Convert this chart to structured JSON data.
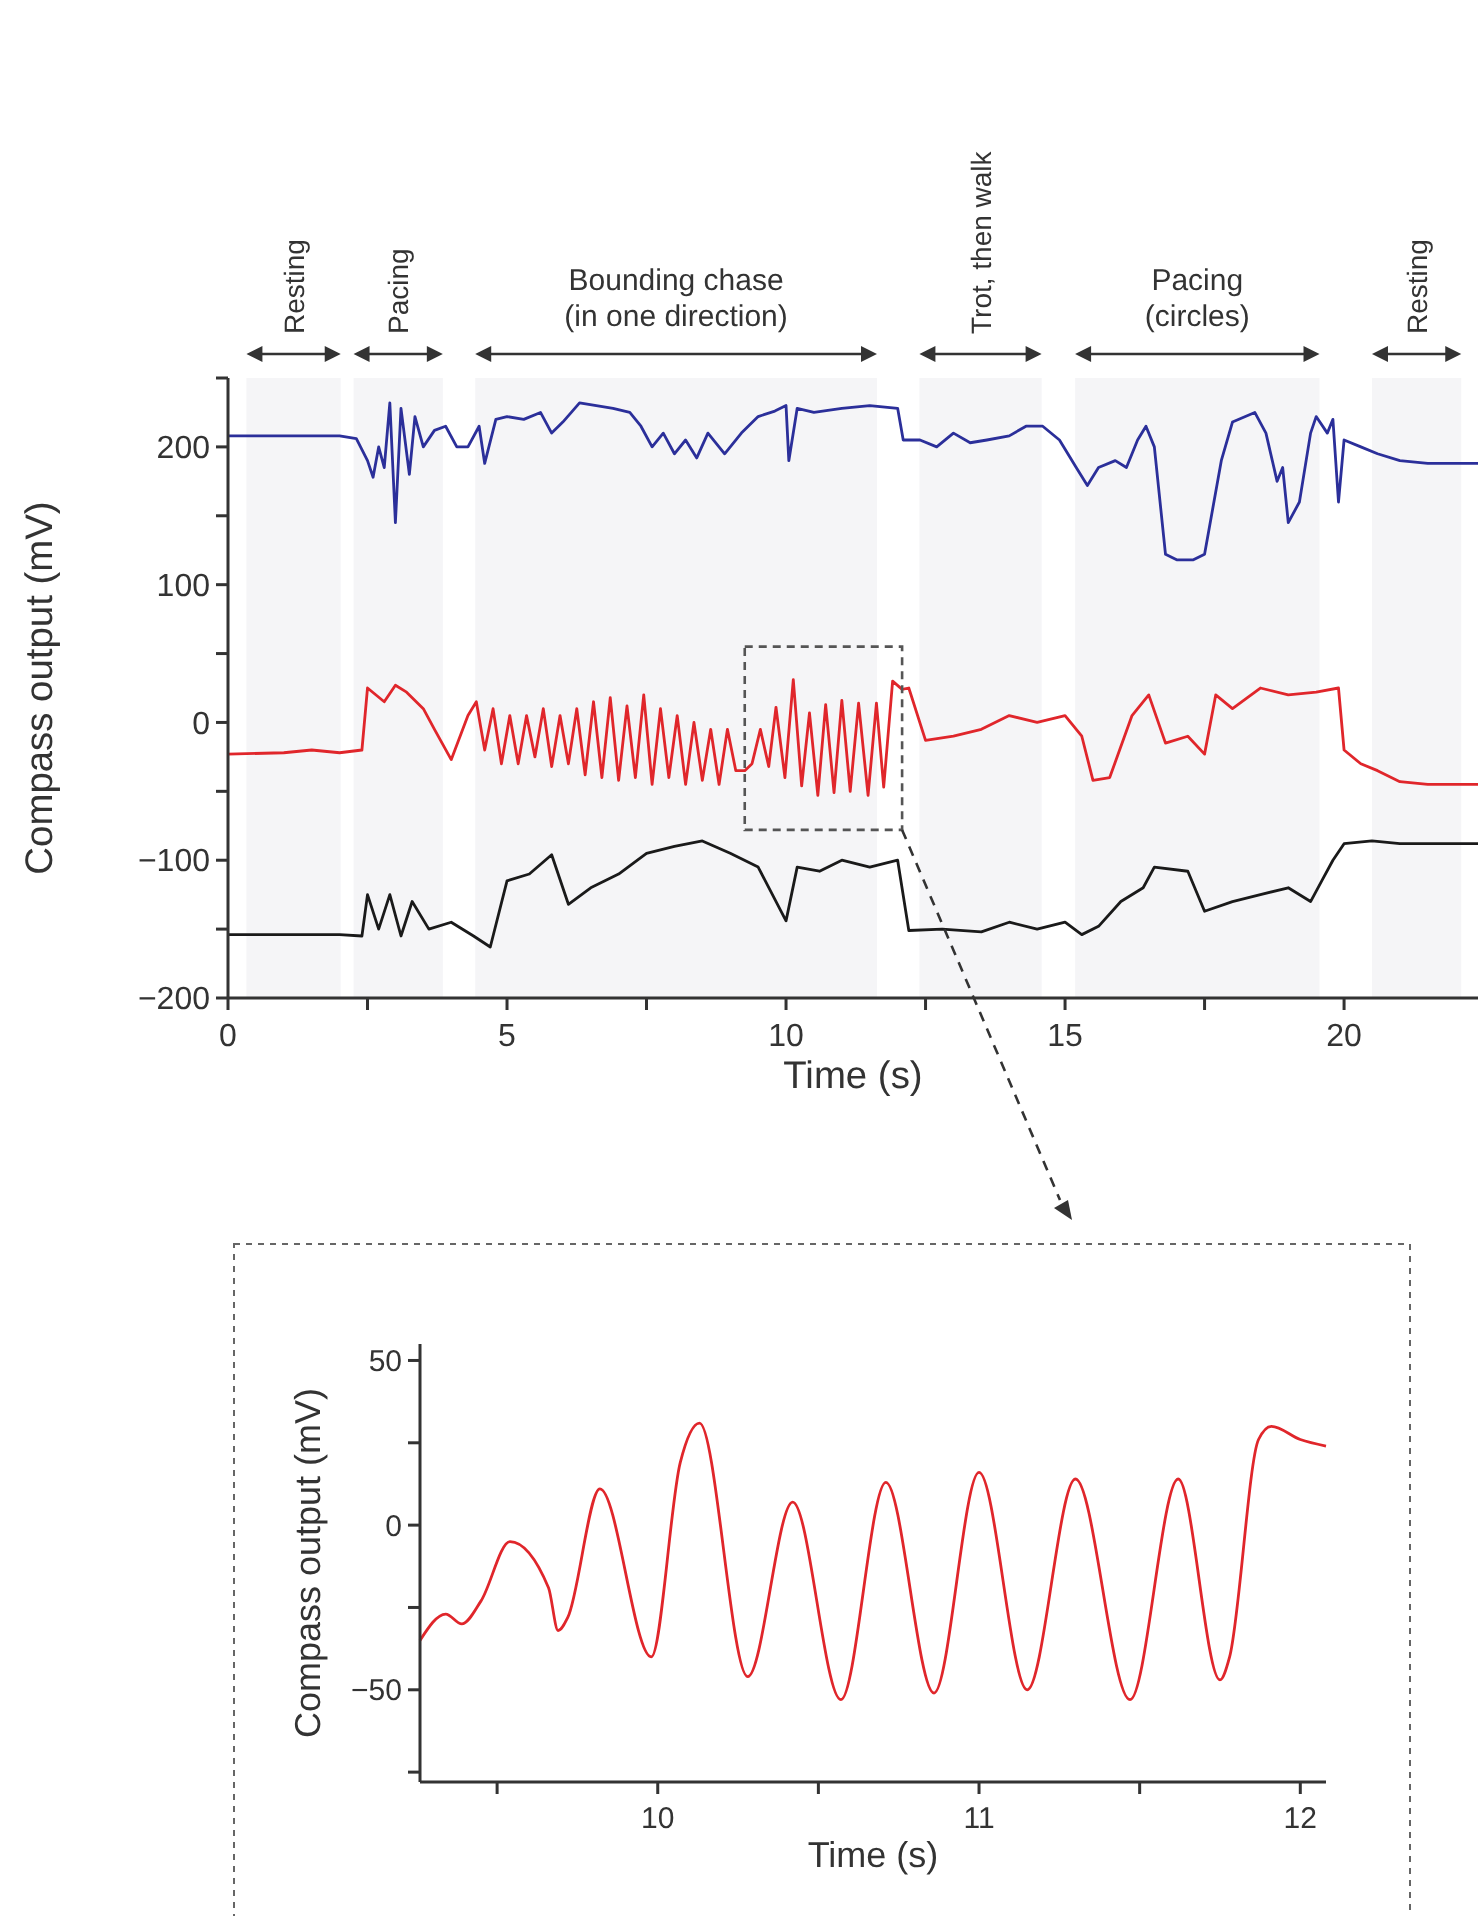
{
  "chart_data": [
    {
      "type": "line",
      "xlabel": "Time (s)",
      "ylabel": "Compass output (mV)",
      "xlim": [
        0,
        22.4
      ],
      "ylim": [
        -200,
        250
      ],
      "xticks": [
        0,
        {
          "value": 2.5,
          "label": null
        },
        5,
        {
          "value": 7.5,
          "label": null
        },
        10,
        {
          "value": 12.5,
          "label": null
        },
        15,
        {
          "value": 17.5,
          "label": null
        },
        20
      ],
      "yticks": [
        -200,
        {
          "value": -150,
          "label": null
        },
        -100,
        {
          "value": -50,
          "label": null
        },
        0,
        {
          "value": 50,
          "label": null
        },
        100,
        {
          "value": 150,
          "label": null
        },
        200,
        {
          "value": 250,
          "label": null
        }
      ],
      "grid": false,
      "marker": "none",
      "line_style": "solid",
      "bands": [
        {
          "axis": "x",
          "from": 0.33,
          "to": 2.02,
          "label": "Resting"
        },
        {
          "axis": "x",
          "from": 2.25,
          "to": 3.85,
          "label": "Pacing"
        },
        {
          "axis": "x",
          "from": 4.43,
          "to": 11.63,
          "label": "Bounding chase\n(in one direction)"
        },
        {
          "axis": "x",
          "from": 12.39,
          "to": 14.58,
          "label": "Trot, then walk"
        },
        {
          "axis": "x",
          "from": 15.18,
          "to": 19.56,
          "label": "Pacing\n(circles)"
        },
        {
          "axis": "x",
          "from": 20.5,
          "to": 22.1,
          "label": "Resting"
        }
      ],
      "series": [
        {
          "color": "#2b2f9a",
          "x": [
            0,
            1,
            2,
            2.3,
            2.5,
            2.6,
            2.7,
            2.8,
            2.9,
            3.0,
            3.1,
            3.25,
            3.35,
            3.5,
            3.7,
            3.9,
            4.1,
            4.3,
            4.5,
            4.6,
            4.8,
            5.0,
            5.3,
            5.6,
            5.8,
            6.0,
            6.3,
            6.6,
            6.9,
            7.2,
            7.4,
            7.6,
            7.8,
            8.0,
            8.2,
            8.4,
            8.6,
            8.9,
            9.2,
            9.5,
            9.8,
            10.0,
            10.05,
            10.2,
            10.5,
            11,
            11.5,
            12.0,
            12.1,
            12.4,
            12.7,
            13.0,
            13.3,
            13.6,
            14,
            14.3,
            14.6,
            14.9,
            15.2,
            15.4,
            15.6,
            15.9,
            16.1,
            16.3,
            16.45,
            16.6,
            16.8,
            17.0,
            17.3,
            17.5,
            17.8,
            18.0,
            18.4,
            18.6,
            18.8,
            18.9,
            19.0,
            19.2,
            19.4,
            19.5,
            19.7,
            19.8,
            19.9,
            20.0,
            20.3,
            20.6,
            21,
            21.5,
            22,
            22.4
          ],
          "values": [
            208,
            208,
            208,
            206,
            190,
            178,
            200,
            185,
            232,
            145,
            228,
            180,
            222,
            200,
            212,
            215,
            200,
            200,
            215,
            188,
            220,
            222,
            220,
            225,
            210,
            218,
            232,
            230,
            228,
            225,
            215,
            200,
            210,
            195,
            205,
            192,
            210,
            195,
            210,
            222,
            226,
            230,
            190,
            228,
            225,
            228,
            230,
            228,
            205,
            205,
            200,
            210,
            203,
            205,
            208,
            215,
            215,
            205,
            185,
            172,
            185,
            190,
            185,
            205,
            215,
            200,
            122,
            118,
            118,
            122,
            190,
            218,
            225,
            210,
            175,
            185,
            145,
            160,
            210,
            222,
            210,
            220,
            160,
            205,
            200,
            195,
            190,
            188,
            188,
            188
          ]
        },
        {
          "color": "#e0262b",
          "x": [
            0,
            1,
            1.5,
            2,
            2.4,
            2.5,
            2.8,
            3.0,
            3.2,
            3.5,
            3.7,
            4.0,
            4.3,
            4.45,
            4.6,
            4.75,
            4.9,
            5.05,
            5.2,
            5.35,
            5.5,
            5.65,
            5.8,
            5.95,
            6.1,
            6.25,
            6.4,
            6.55,
            6.7,
            6.85,
            7.0,
            7.15,
            7.3,
            7.45,
            7.6,
            7.75,
            7.9,
            8.05,
            8.2,
            8.35,
            8.5,
            8.65,
            8.8,
            8.95,
            9.1,
            9.26,
            9.39,
            9.54,
            9.69,
            9.82,
            9.98,
            10.13,
            10.28,
            10.42,
            10.57,
            10.71,
            10.86,
            11.0,
            11.15,
            11.3,
            11.47,
            11.62,
            11.75,
            11.91,
            12.08,
            12.2,
            12.5,
            13,
            13.5,
            14,
            14.5,
            15,
            15.3,
            15.5,
            15.8,
            16.2,
            16.5,
            16.8,
            17.2,
            17.5,
            17.7,
            18.0,
            18.5,
            19,
            19.5,
            19.9,
            20.0,
            20.3,
            20.6,
            21,
            21.5,
            22,
            22.4
          ],
          "values": [
            -23,
            -22,
            -20,
            -22,
            -20,
            25,
            15,
            27,
            22,
            10,
            -5,
            -27,
            5,
            15,
            -20,
            10,
            -30,
            5,
            -30,
            5,
            -25,
            10,
            -32,
            5,
            -30,
            10,
            -38,
            15,
            -40,
            18,
            -42,
            12,
            -40,
            20,
            -45,
            10,
            -40,
            5,
            -45,
            0,
            -42,
            -5,
            -45,
            -5,
            -35,
            -35,
            -30,
            -5,
            -32,
            11,
            -40,
            31,
            -46,
            7,
            -53,
            13,
            -51,
            16,
            -50,
            14,
            -53,
            14,
            -47,
            30,
            24,
            25,
            -13,
            -10,
            -5,
            5,
            0,
            5,
            -10,
            -42,
            -40,
            5,
            20,
            -15,
            -10,
            -23,
            20,
            10,
            25,
            20,
            22,
            25,
            -20,
            -30,
            -35,
            -43,
            -45,
            -45,
            -45
          ]
        },
        {
          "color": "#1a1a1a",
          "x": [
            0,
            1,
            2,
            2.4,
            2.5,
            2.7,
            2.9,
            3.1,
            3.3,
            3.6,
            4.0,
            4.4,
            4.7,
            5.0,
            5.4,
            5.8,
            6.1,
            6.5,
            7.0,
            7.5,
            8.0,
            8.5,
            9.0,
            9.5,
            10.0,
            10.2,
            10.6,
            11,
            11.5,
            12.0,
            12.2,
            12.8,
            13.5,
            14,
            14.5,
            15,
            15.3,
            15.6,
            16.0,
            16.4,
            16.6,
            17.2,
            17.5,
            18,
            18.5,
            19,
            19.4,
            19.6,
            19.8,
            20.0,
            20.5,
            21,
            21.5,
            22,
            22.4
          ],
          "values": [
            -154,
            -154,
            -154,
            -155,
            -125,
            -150,
            -125,
            -155,
            -130,
            -150,
            -145,
            -155,
            -163,
            -115,
            -110,
            -96,
            -132,
            -120,
            -110,
            -95,
            -90,
            -86,
            -95,
            -105,
            -144,
            -105,
            -108,
            -100,
            -105,
            -100,
            -151,
            -150,
            -152,
            -145,
            -150,
            -145,
            -154,
            -148,
            -130,
            -120,
            -105,
            -108,
            -137,
            -130,
            -125,
            -120,
            -130,
            -115,
            -100,
            -88,
            -86,
            -88,
            -88,
            -88,
            -88
          ]
        }
      ]
    },
    {
      "type": "line",
      "xlabel": "Time (s)",
      "ylabel": "Compass output (mV)",
      "xlim": [
        9.26,
        12.08
      ],
      "ylim": [
        -78,
        55
      ],
      "xticks": [
        {
          "value": 9.5,
          "label": null
        },
        10,
        {
          "value": 10.5,
          "label": null
        },
        11,
        {
          "value": 11.5,
          "label": null
        },
        12
      ],
      "yticks": [
        {
          "value": -75,
          "label": null
        },
        -50,
        {
          "value": -25,
          "label": null
        },
        0,
        {
          "value": 25,
          "label": null
        },
        50
      ],
      "grid": false,
      "marker": "none",
      "line_style": "solid",
      "series": [
        {
          "color": "#e0262b",
          "x": [
            9.26,
            9.34,
            9.39,
            9.45,
            9.54,
            9.66,
            9.69,
            9.72,
            9.82,
            9.98,
            10.07,
            10.13,
            10.28,
            10.42,
            10.57,
            10.71,
            10.86,
            11.0,
            11.15,
            11.3,
            11.47,
            11.62,
            11.75,
            11.78,
            11.87,
            11.91,
            12.0,
            12.08
          ],
          "values": [
            -35,
            -27,
            -30,
            -23,
            -5,
            -19,
            -32,
            -28,
            11,
            -40,
            19,
            31,
            -46,
            7,
            -53,
            13,
            -51,
            16,
            -50,
            14,
            -53,
            14,
            -47,
            -40,
            26,
            30,
            26,
            24
          ]
        }
      ]
    }
  ]
}
